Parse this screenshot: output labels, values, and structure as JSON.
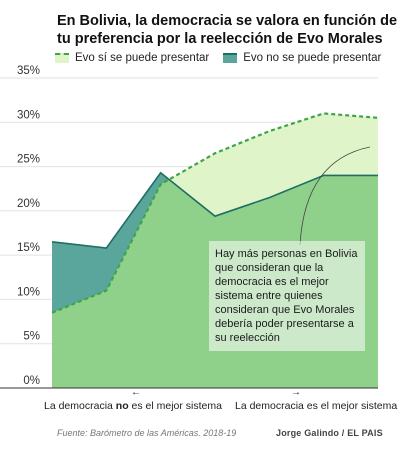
{
  "title": "En Bolivia, la democracia se valora en función de tu preferencia por la reelección de Evo Morales",
  "legend": {
    "items": [
      {
        "label": "Evo sí se puede presentar",
        "color": "#7fd47a",
        "fill": "#dff5c9",
        "dashed": true
      },
      {
        "label": "Evo no se puede presentar",
        "color": "#1f6e63",
        "fill": "#5aa59c",
        "dashed": false
      }
    ]
  },
  "x_labels": {
    "left_pre": "La democracia ",
    "left_bold": "no",
    "left_post": " es el mejor sistema",
    "right": "La democracia es el mejor sistema",
    "left_arrow": "←",
    "right_arrow": "→"
  },
  "annotation": "Hay más personas en Bolivia que consideran que la democracia es el mejor sistema entre quienes consideran que Evo Morales debería poder presentarse a su reelección",
  "source": "Fuente: Barómetro de las Américas. 2018-19",
  "credit": "Jorge Galindo / EL PAIS",
  "chart_data": {
    "type": "area",
    "x": [
      1,
      2,
      3,
      4,
      5,
      6,
      7
    ],
    "yticks": [
      "0%",
      "5%",
      "10%",
      "15%",
      "20%",
      "25%",
      "30%",
      "35%"
    ],
    "ylim": [
      0,
      35
    ],
    "grid": true,
    "series": [
      {
        "name": "Evo sí se puede presentar",
        "values": [
          8.5,
          11,
          23,
          26.5,
          29,
          31,
          30.5
        ],
        "color": "#3fa447",
        "fill": "#dff5c9",
        "dashed": true
      },
      {
        "name": "Evo no se puede presentar",
        "values": [
          16.5,
          15.8,
          24.3,
          19.4,
          21.5,
          24,
          24
        ],
        "color": "#1f6e63",
        "fill": "#5aa59c",
        "dashed": false
      }
    ]
  }
}
